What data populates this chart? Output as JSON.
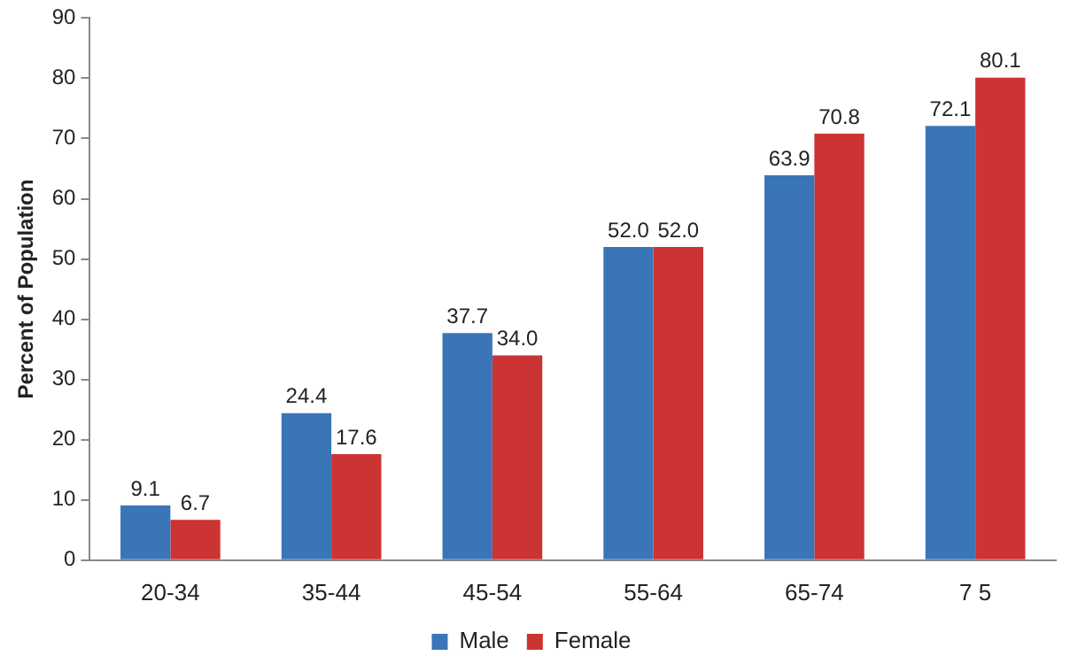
{
  "chart_data": {
    "type": "bar",
    "ylabel": "Percent of Population",
    "categories": [
      "20-34",
      "35-44",
      "45-54",
      "55-64",
      "65-74",
      "7 5"
    ],
    "series": [
      {
        "name": "Male",
        "color": "#3a75b8",
        "values": [
          9.1,
          24.4,
          37.7,
          52.0,
          63.9,
          72.1
        ],
        "value_labels": [
          "9.1",
          "24.4",
          "37.7",
          "52.0",
          "63.9",
          "72.1"
        ]
      },
      {
        "name": "Female",
        "color": "#cc3333",
        "values": [
          6.7,
          17.6,
          34.0,
          52.0,
          70.8,
          80.1
        ],
        "value_labels": [
          "6.7",
          "17.6",
          "34.0",
          "52.0",
          "70.8",
          "80.1"
        ]
      }
    ],
    "ylim": [
      0,
      90
    ],
    "yticks": [
      0,
      10,
      20,
      30,
      40,
      50,
      60,
      70,
      80,
      90
    ],
    "grid": false,
    "legend": "bottom"
  }
}
